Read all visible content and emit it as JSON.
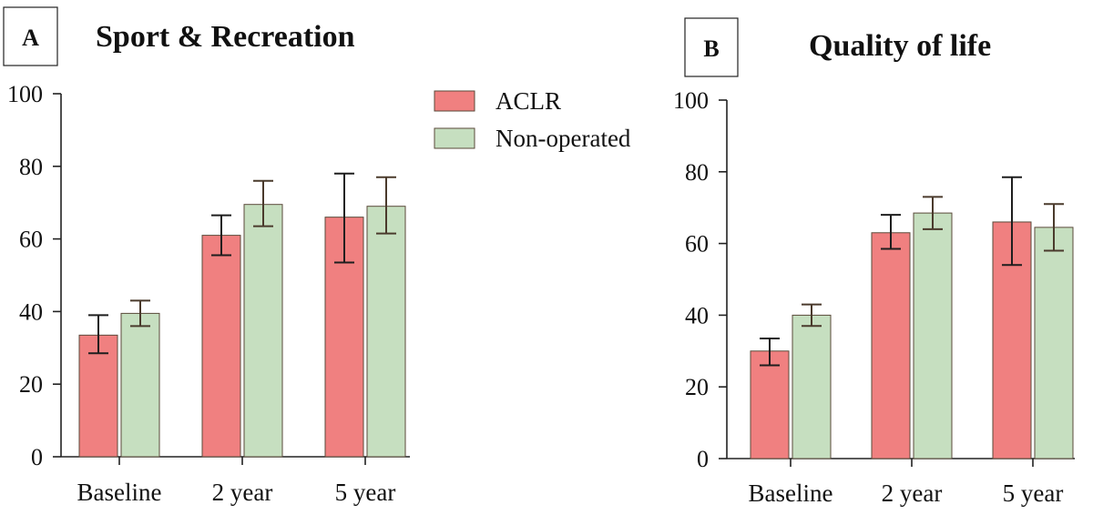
{
  "panels": [
    {
      "letter": "A",
      "title": "Sport & Recreation"
    },
    {
      "letter": "B",
      "title": "Quality of life"
    }
  ],
  "legend": [
    {
      "label": "ACLR",
      "color": "#f08080"
    },
    {
      "label": "Non-operated",
      "color": "#c6dfc0"
    }
  ],
  "colors": {
    "aclr": "#f08080",
    "non_operated": "#c6dfc0",
    "bar_stroke": "#5a4a3a",
    "error_aclr": "#1e1e1e",
    "error_non_operated": "#4a3a2c"
  },
  "chart_data": [
    {
      "type": "bar",
      "title": "Sport & Recreation",
      "xlabel": "",
      "ylabel": "",
      "categories": [
        "Baseline",
        "2 year",
        "5 year"
      ],
      "ylim": [
        0,
        100
      ],
      "yticks": [
        0,
        20,
        40,
        60,
        80,
        100
      ],
      "series": [
        {
          "name": "ACLR",
          "values": [
            33.5,
            61,
            66
          ],
          "err_low": [
            28.5,
            55.5,
            53.5
          ],
          "err_high": [
            39,
            66.5,
            78
          ]
        },
        {
          "name": "Non-operated",
          "values": [
            39.5,
            69.5,
            69
          ],
          "err_low": [
            36,
            63.5,
            61.5
          ],
          "err_high": [
            43,
            76,
            77
          ]
        }
      ]
    },
    {
      "type": "bar",
      "title": "Quality of life",
      "xlabel": "",
      "ylabel": "",
      "categories": [
        "Baseline",
        "2 year",
        "5 year"
      ],
      "ylim": [
        0,
        100
      ],
      "yticks": [
        0,
        20,
        40,
        60,
        80,
        100
      ],
      "series": [
        {
          "name": "ACLR",
          "values": [
            30,
            63,
            66
          ],
          "err_low": [
            26,
            58.5,
            54
          ],
          "err_high": [
            33.5,
            68,
            78.5
          ]
        },
        {
          "name": "Non-operated",
          "values": [
            40,
            68.5,
            64.5
          ],
          "err_low": [
            37,
            64,
            58
          ],
          "err_high": [
            43,
            73,
            71
          ]
        }
      ]
    }
  ]
}
